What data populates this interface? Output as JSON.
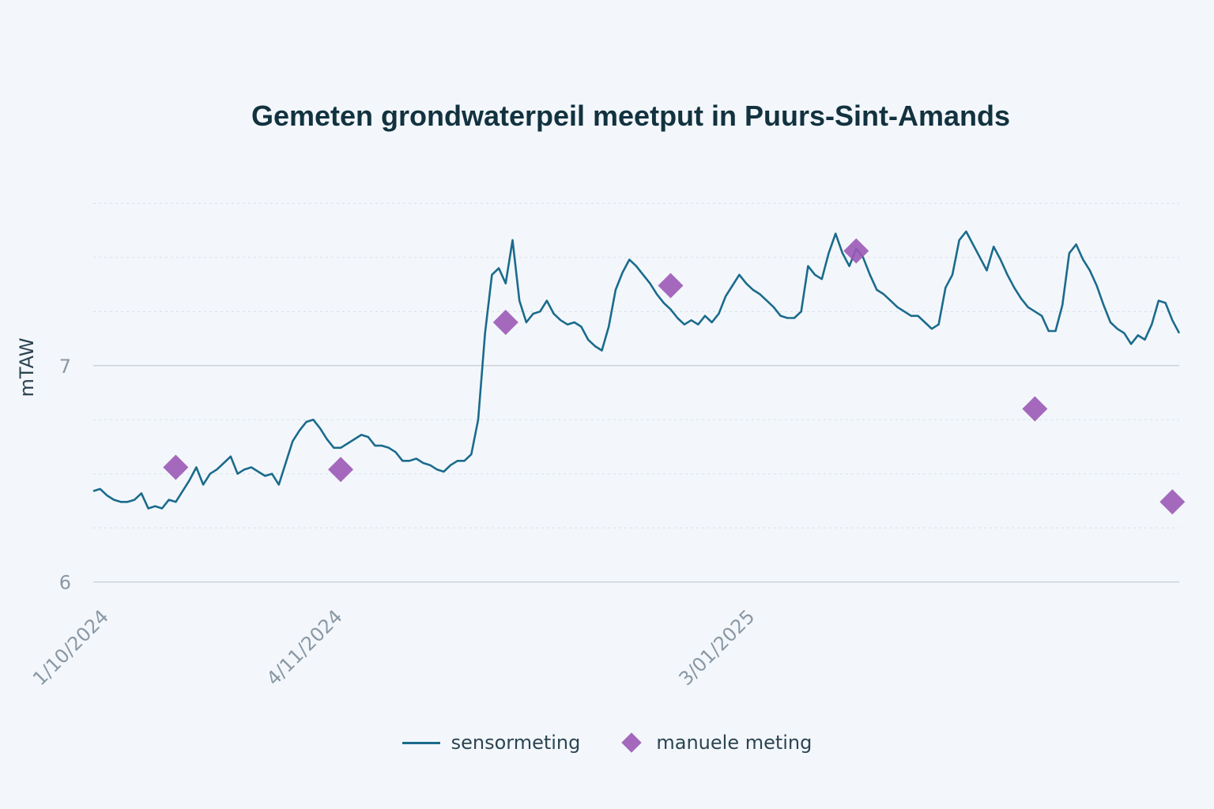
{
  "chart_data": {
    "type": "line",
    "title": "Gemeten grondwaterpeil meetput in Puurs-Sint-Amands",
    "xlabel": "",
    "ylabel": "mTAW",
    "ylim": [
      5.995,
      7.85
    ],
    "xlim": [
      "2024-09-30",
      "2025-03-07"
    ],
    "x_ticks": [
      {
        "date": "2024-10-01",
        "label": "1/10/2024"
      },
      {
        "date": "2024-11-04",
        "label": "4/11/2024"
      },
      {
        "date": "2025-01-03",
        "label": "3/01/2025"
      }
    ],
    "y_ticks": [
      {
        "value": 6,
        "label": "6"
      },
      {
        "value": 7,
        "label": "7"
      }
    ],
    "grid": true,
    "legend_position": "bottom",
    "colors": {
      "sensor": "#1b6b8c",
      "manual": "#9b59b6",
      "background": "#f3f7fb",
      "title": "#12323f"
    },
    "series": [
      {
        "name": "sensormeting",
        "type": "line",
        "points": [
          [
            "2024-09-30",
            6.42
          ],
          [
            "2024-10-01",
            6.43
          ],
          [
            "2024-10-02",
            6.4
          ],
          [
            "2024-10-03",
            6.38
          ],
          [
            "2024-10-04",
            6.37
          ],
          [
            "2024-10-05",
            6.37
          ],
          [
            "2024-10-06",
            6.38
          ],
          [
            "2024-10-07",
            6.41
          ],
          [
            "2024-10-08",
            6.34
          ],
          [
            "2024-10-09",
            6.35
          ],
          [
            "2024-10-10",
            6.34
          ],
          [
            "2024-10-11",
            6.38
          ],
          [
            "2024-10-12",
            6.37
          ],
          [
            "2024-10-13",
            6.42
          ],
          [
            "2024-10-14",
            6.47
          ],
          [
            "2024-10-15",
            6.53
          ],
          [
            "2024-10-16",
            6.45
          ],
          [
            "2024-10-17",
            6.5
          ],
          [
            "2024-10-18",
            6.52
          ],
          [
            "2024-10-19",
            6.55
          ],
          [
            "2024-10-20",
            6.58
          ],
          [
            "2024-10-21",
            6.5
          ],
          [
            "2024-10-22",
            6.52
          ],
          [
            "2024-10-23",
            6.53
          ],
          [
            "2024-10-24",
            6.51
          ],
          [
            "2024-10-25",
            6.49
          ],
          [
            "2024-10-26",
            6.5
          ],
          [
            "2024-10-27",
            6.45
          ],
          [
            "2024-10-28",
            6.55
          ],
          [
            "2024-10-29",
            6.65
          ],
          [
            "2024-10-30",
            6.7
          ],
          [
            "2024-10-31",
            6.74
          ],
          [
            "2024-11-01",
            6.75
          ],
          [
            "2024-11-02",
            6.71
          ],
          [
            "2024-11-03",
            6.66
          ],
          [
            "2024-11-04",
            6.62
          ],
          [
            "2024-11-05",
            6.62
          ],
          [
            "2024-11-06",
            6.64
          ],
          [
            "2024-11-07",
            6.66
          ],
          [
            "2024-11-08",
            6.68
          ],
          [
            "2024-11-09",
            6.67
          ],
          [
            "2024-11-10",
            6.63
          ],
          [
            "2024-11-11",
            6.63
          ],
          [
            "2024-11-12",
            6.62
          ],
          [
            "2024-11-13",
            6.6
          ],
          [
            "2024-11-14",
            6.56
          ],
          [
            "2024-11-15",
            6.56
          ],
          [
            "2024-11-16",
            6.57
          ],
          [
            "2024-11-17",
            6.55
          ],
          [
            "2024-11-18",
            6.54
          ],
          [
            "2024-11-19",
            6.52
          ],
          [
            "2024-11-20",
            6.51
          ],
          [
            "2024-11-21",
            6.54
          ],
          [
            "2024-11-22",
            6.56
          ],
          [
            "2024-11-23",
            6.56
          ],
          [
            "2024-11-24",
            6.59
          ],
          [
            "2024-11-25",
            6.75
          ],
          [
            "2024-11-26",
            7.15
          ],
          [
            "2024-11-27",
            7.42
          ],
          [
            "2024-11-28",
            7.45
          ],
          [
            "2024-11-29",
            7.38
          ],
          [
            "2024-11-30",
            7.58
          ],
          [
            "2024-12-01",
            7.3
          ],
          [
            "2024-12-02",
            7.2
          ],
          [
            "2024-12-03",
            7.24
          ],
          [
            "2024-12-04",
            7.25
          ],
          [
            "2024-12-05",
            7.3
          ],
          [
            "2024-12-06",
            7.24
          ],
          [
            "2024-12-07",
            7.21
          ],
          [
            "2024-12-08",
            7.19
          ],
          [
            "2024-12-09",
            7.2
          ],
          [
            "2024-12-10",
            7.18
          ],
          [
            "2024-12-11",
            7.12
          ],
          [
            "2024-12-12",
            7.09
          ],
          [
            "2024-12-13",
            7.07
          ],
          [
            "2024-12-14",
            7.18
          ],
          [
            "2024-12-15",
            7.35
          ],
          [
            "2024-12-16",
            7.43
          ],
          [
            "2024-12-17",
            7.49
          ],
          [
            "2024-12-18",
            7.46
          ],
          [
            "2024-12-19",
            7.42
          ],
          [
            "2024-12-20",
            7.38
          ],
          [
            "2024-12-21",
            7.33
          ],
          [
            "2024-12-22",
            7.29
          ],
          [
            "2024-12-23",
            7.26
          ],
          [
            "2024-12-24",
            7.22
          ],
          [
            "2024-12-25",
            7.19
          ],
          [
            "2024-12-26",
            7.21
          ],
          [
            "2024-12-27",
            7.19
          ],
          [
            "2024-12-28",
            7.23
          ],
          [
            "2024-12-29",
            7.2
          ],
          [
            "2024-12-30",
            7.24
          ],
          [
            "2024-12-31",
            7.32
          ],
          [
            "2025-01-01",
            7.37
          ],
          [
            "2025-01-02",
            7.42
          ],
          [
            "2025-01-03",
            7.38
          ],
          [
            "2025-01-04",
            7.35
          ],
          [
            "2025-01-05",
            7.33
          ],
          [
            "2025-01-06",
            7.3
          ],
          [
            "2025-01-07",
            7.27
          ],
          [
            "2025-01-08",
            7.23
          ],
          [
            "2025-01-09",
            7.22
          ],
          [
            "2025-01-10",
            7.22
          ],
          [
            "2025-01-11",
            7.25
          ],
          [
            "2025-01-12",
            7.46
          ],
          [
            "2025-01-13",
            7.42
          ],
          [
            "2025-01-14",
            7.4
          ],
          [
            "2025-01-15",
            7.52
          ],
          [
            "2025-01-16",
            7.61
          ],
          [
            "2025-01-17",
            7.52
          ],
          [
            "2025-01-18",
            7.46
          ],
          [
            "2025-01-19",
            7.54
          ],
          [
            "2025-01-20",
            7.5
          ],
          [
            "2025-01-21",
            7.42
          ],
          [
            "2025-01-22",
            7.35
          ],
          [
            "2025-01-23",
            7.33
          ],
          [
            "2025-01-24",
            7.3
          ],
          [
            "2025-01-25",
            7.27
          ],
          [
            "2025-01-26",
            7.25
          ],
          [
            "2025-01-27",
            7.23
          ],
          [
            "2025-01-28",
            7.23
          ],
          [
            "2025-01-29",
            7.2
          ],
          [
            "2025-01-30",
            7.17
          ],
          [
            "2025-01-31",
            7.19
          ],
          [
            "2025-02-01",
            7.36
          ],
          [
            "2025-02-02",
            7.42
          ],
          [
            "2025-02-03",
            7.58
          ],
          [
            "2025-02-04",
            7.62
          ],
          [
            "2025-02-05",
            7.56
          ],
          [
            "2025-02-06",
            7.5
          ],
          [
            "2025-02-07",
            7.44
          ],
          [
            "2025-02-08",
            7.55
          ],
          [
            "2025-02-09",
            7.49
          ],
          [
            "2025-02-10",
            7.42
          ],
          [
            "2025-02-11",
            7.36
          ],
          [
            "2025-02-12",
            7.31
          ],
          [
            "2025-02-13",
            7.27
          ],
          [
            "2025-02-14",
            7.25
          ],
          [
            "2025-02-15",
            7.23
          ],
          [
            "2025-02-16",
            7.16
          ],
          [
            "2025-02-17",
            7.16
          ],
          [
            "2025-02-18",
            7.28
          ],
          [
            "2025-02-19",
            7.52
          ],
          [
            "2025-02-20",
            7.56
          ],
          [
            "2025-02-21",
            7.49
          ],
          [
            "2025-02-22",
            7.44
          ],
          [
            "2025-02-23",
            7.37
          ],
          [
            "2025-02-24",
            7.28
          ],
          [
            "2025-02-25",
            7.2
          ],
          [
            "2025-02-26",
            7.17
          ],
          [
            "2025-02-27",
            7.15
          ],
          [
            "2025-02-28",
            7.1
          ],
          [
            "2025-03-01",
            7.14
          ],
          [
            "2025-03-02",
            7.12
          ],
          [
            "2025-03-03",
            7.19
          ],
          [
            "2025-03-04",
            7.3
          ],
          [
            "2025-03-05",
            7.29
          ],
          [
            "2025-03-06",
            7.21
          ],
          [
            "2025-03-07",
            7.15
          ]
        ]
      },
      {
        "name": "manuele meting",
        "type": "scatter",
        "marker": "diamond",
        "points": [
          [
            "2024-10-12",
            6.53
          ],
          [
            "2024-11-05",
            6.52
          ],
          [
            "2024-11-29",
            7.2
          ],
          [
            "2024-12-23",
            7.37
          ],
          [
            "2025-01-19",
            7.53
          ],
          [
            "2025-02-14",
            6.8
          ],
          [
            "2025-03-06",
            6.37
          ]
        ]
      }
    ]
  }
}
